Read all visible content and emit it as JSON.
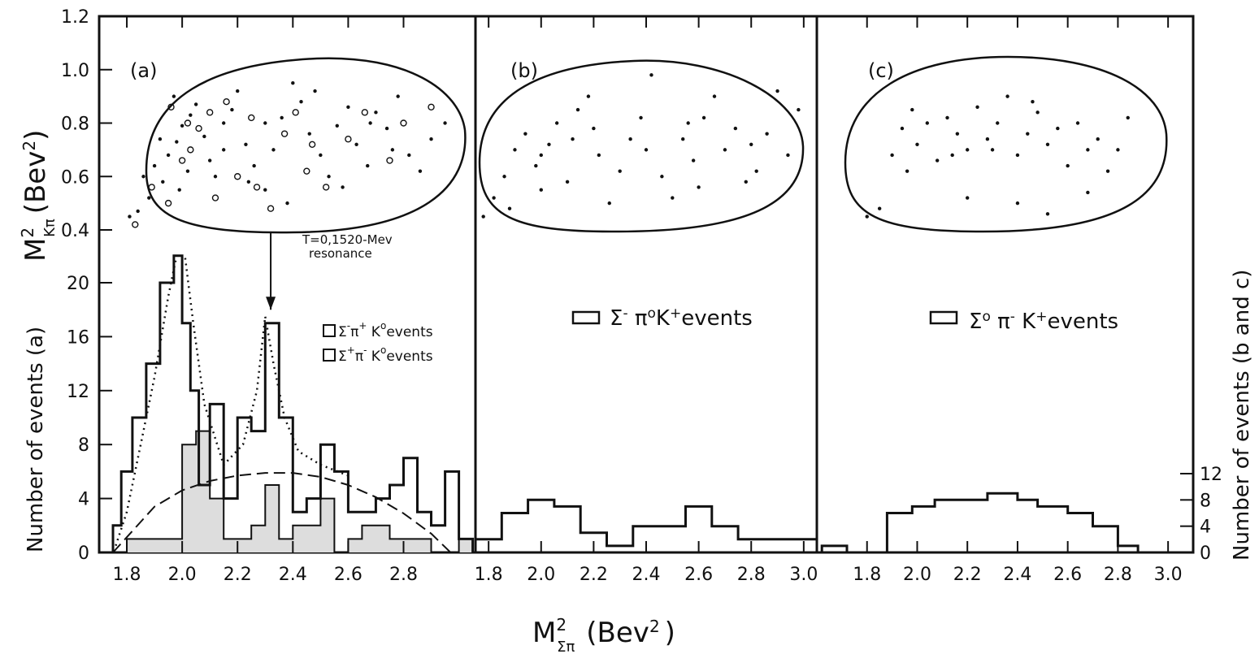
{
  "axis_titles": {
    "y_top": "M",
    "y_top_sub": "Kπ",
    "y_top_sup": "2",
    "y_top_unit": "(Bev",
    "y_top_unit_sup": "2",
    "y_top_close": ")",
    "y_left": "Number of events (a)",
    "y_right": "Number of events (b and c)",
    "x": "M",
    "x_sub": "Σπ",
    "x_sup": "2",
    "x_unit": "(Bev",
    "x_unit_sup": "2",
    "x_close": ")"
  },
  "ticks": {
    "mass_sq": [
      "1.2",
      "1.0",
      "0.8",
      "0.6",
      "0.4"
    ],
    "count_a": [
      "20",
      "16",
      "12",
      "8",
      "4",
      "0"
    ],
    "count_bc": [
      "12",
      "8",
      "4",
      "0"
    ],
    "x_a": [
      "1.8",
      "2.0",
      "2.2",
      "2.4",
      "2.6",
      "2.8"
    ],
    "x_b": [
      "1.8",
      "2.0",
      "2.2",
      "2.4",
      "2.6",
      "2.8",
      "3.0"
    ],
    "x_c": [
      "1.8",
      "2.0",
      "2.2",
      "2.4",
      "2.6",
      "2.8",
      "3.0"
    ]
  },
  "chart_data": [
    {
      "type": "histogram",
      "panel": "(a)",
      "x_range": [
        1.7,
        3.06
      ],
      "y_range_count": [
        0,
        24
      ],
      "y_range_mass_sq": [
        0.4,
        1.2
      ],
      "series": [
        {
          "name": "Σ⁻π⁺ K⁰events",
          "name_parts": [
            "Σ",
            "-",
            "π",
            "+",
            " K",
            "o",
            "events"
          ],
          "bin_edges": [
            1.75,
            1.78,
            1.82,
            1.87,
            1.92,
            1.97,
            2.0,
            2.03,
            2.06,
            2.1,
            2.15,
            2.2,
            2.25,
            2.3,
            2.35,
            2.4,
            2.45,
            2.5,
            2.55,
            2.6,
            2.65,
            2.7,
            2.75,
            2.8,
            2.85,
            2.9,
            2.95,
            3.0,
            3.05
          ],
          "counts": [
            2,
            6,
            10,
            14,
            20,
            22,
            17,
            12,
            5,
            11,
            4,
            10,
            9,
            17,
            10,
            3,
            4,
            8,
            6,
            3,
            3,
            4,
            5,
            7,
            3,
            2,
            6,
            1
          ]
        },
        {
          "name": "Σ⁺π⁻ K⁰events",
          "name_parts": [
            "Σ",
            "+",
            "π",
            "-",
            " K",
            "o",
            "events"
          ],
          "bin_edges": [
            1.75,
            1.8,
            1.9,
            1.95,
            2.0,
            2.05,
            2.1,
            2.15,
            2.2,
            2.25,
            2.3,
            2.35,
            2.4,
            2.45,
            2.5,
            2.55,
            2.6,
            2.65,
            2.7,
            2.75,
            2.8,
            2.85,
            2.9,
            2.95,
            3.0,
            3.05
          ],
          "counts": [
            0,
            1,
            1,
            1,
            8,
            9,
            4,
            1,
            1,
            2,
            5,
            1,
            2,
            2,
            4,
            0,
            1,
            2,
            2,
            1,
            1,
            1,
            0,
            0,
            1
          ]
        }
      ],
      "curves": {
        "phase_space": {
          "x": [
            1.75,
            1.9,
            2.0,
            2.1,
            2.2,
            2.3,
            2.4,
            2.5,
            2.6,
            2.7,
            2.8,
            2.9,
            2.97
          ],
          "y": [
            0,
            3.4,
            4.6,
            5.3,
            5.7,
            5.9,
            5.9,
            5.6,
            5.0,
            4.1,
            2.9,
            1.4,
            0
          ]
        },
        "resonance_fit": {
          "x": [
            1.76,
            1.8,
            1.85,
            1.9,
            1.95,
            1.98,
            2.01,
            2.04,
            2.08,
            2.15,
            2.22,
            2.27,
            2.3,
            2.33,
            2.37,
            2.42,
            2.5,
            2.6
          ],
          "y": [
            0.5,
            3,
            8,
            13,
            19,
            22,
            22,
            17,
            11,
            6.5,
            8,
            12,
            17.5,
            14,
            10,
            7.5,
            6.5,
            5.7
          ]
        }
      },
      "annotation": {
        "text_line1": "T=0,1520-Mev",
        "text_line2": "resonance",
        "arrow_x": 2.32,
        "arrow_from_y": 22.5,
        "arrow_to_y": 18
      }
    },
    {
      "type": "histogram",
      "panel": "(b)",
      "x_range": [
        1.75,
        3.05
      ],
      "y_range_count": [
        0,
        36
      ],
      "series": [
        {
          "name": "Σ⁻ π⁰K⁺events",
          "name_parts": [
            "Σ",
            "-",
            " π",
            "o",
            "K",
            "+",
            "events"
          ],
          "bin_edges": [
            1.75,
            1.85,
            1.95,
            2.05,
            2.15,
            2.25,
            2.35,
            2.45,
            2.55,
            2.65,
            2.75,
            2.9,
            3.05
          ],
          "counts": [
            2,
            6,
            8,
            7,
            3,
            1,
            4,
            4,
            7,
            4,
            2,
            2
          ]
        }
      ]
    },
    {
      "type": "histogram",
      "panel": "(c)",
      "x_range": [
        1.6,
        3.1
      ],
      "y_range_count": [
        0,
        36
      ],
      "series": [
        {
          "name": "Σ⁰ π⁻ K⁺events",
          "name_parts": [
            "Σ",
            "o",
            " π",
            "-",
            " K",
            "+",
            "events"
          ],
          "bin_edges": [
            1.62,
            1.72,
            1.8,
            1.88,
            1.98,
            2.07,
            2.2,
            2.28,
            2.4,
            2.48,
            2.6,
            2.7,
            2.8,
            2.88,
            3.0
          ],
          "counts": [
            1,
            0,
            0,
            6,
            7,
            8,
            8,
            9,
            8,
            7,
            6,
            4,
            1,
            0
          ]
        }
      ]
    }
  ],
  "scatter_points": {
    "a": {
      "dots": [
        [
          1.81,
          0.45
        ],
        [
          1.84,
          0.47
        ],
        [
          1.88,
          0.52
        ],
        [
          1.86,
          0.6
        ],
        [
          1.9,
          0.64
        ],
        [
          1.93,
          0.58
        ],
        [
          1.95,
          0.68
        ],
        [
          1.98,
          0.73
        ],
        [
          2.0,
          0.79
        ],
        [
          2.03,
          0.83
        ],
        [
          1.97,
          0.9
        ],
        [
          2.05,
          0.87
        ],
        [
          2.08,
          0.75
        ],
        [
          2.1,
          0.66
        ],
        [
          2.12,
          0.6
        ],
        [
          2.15,
          0.8
        ],
        [
          2.18,
          0.85
        ],
        [
          2.2,
          0.92
        ],
        [
          2.23,
          0.72
        ],
        [
          2.26,
          0.64
        ],
        [
          2.3,
          0.55
        ],
        [
          2.33,
          0.7
        ],
        [
          2.36,
          0.82
        ],
        [
          2.4,
          0.95
        ],
        [
          2.43,
          0.88
        ],
        [
          2.46,
          0.76
        ],
        [
          2.5,
          0.68
        ],
        [
          2.53,
          0.6
        ],
        [
          2.56,
          0.79
        ],
        [
          2.6,
          0.86
        ],
        [
          2.63,
          0.72
        ],
        [
          2.67,
          0.64
        ],
        [
          2.7,
          0.84
        ],
        [
          2.74,
          0.78
        ],
        [
          2.78,
          0.9
        ],
        [
          2.82,
          0.68
        ],
        [
          2.86,
          0.62
        ],
        [
          2.9,
          0.74
        ],
        [
          2.95,
          0.8
        ],
        [
          1.92,
          0.74
        ],
        [
          2.02,
          0.62
        ],
        [
          2.24,
          0.58
        ],
        [
          2.38,
          0.5
        ],
        [
          2.48,
          0.92
        ],
        [
          2.58,
          0.56
        ],
        [
          2.68,
          0.8
        ],
        [
          2.3,
          0.8
        ],
        [
          2.15,
          0.7
        ],
        [
          1.99,
          0.55
        ],
        [
          2.76,
          0.7
        ]
      ],
      "circles": [
        [
          1.83,
          0.42
        ],
        [
          1.89,
          0.56
        ],
        [
          1.95,
          0.5
        ],
        [
          2.0,
          0.66
        ],
        [
          2.02,
          0.8
        ],
        [
          2.06,
          0.78
        ],
        [
          2.1,
          0.84
        ],
        [
          2.16,
          0.88
        ],
        [
          2.2,
          0.6
        ],
        [
          2.27,
          0.56
        ],
        [
          2.32,
          0.48
        ],
        [
          2.37,
          0.76
        ],
        [
          2.41,
          0.84
        ],
        [
          2.47,
          0.72
        ],
        [
          2.52,
          0.56
        ],
        [
          2.6,
          0.74
        ],
        [
          2.66,
          0.84
        ],
        [
          2.75,
          0.66
        ],
        [
          2.9,
          0.86
        ],
        [
          1.96,
          0.86
        ],
        [
          2.12,
          0.52
        ],
        [
          2.45,
          0.62
        ],
        [
          2.8,
          0.8
        ],
        [
          2.25,
          0.82
        ],
        [
          2.03,
          0.7
        ]
      ]
    },
    "b": [
      [
        1.78,
        0.45
      ],
      [
        1.82,
        0.52
      ],
      [
        1.86,
        0.6
      ],
      [
        1.9,
        0.7
      ],
      [
        1.94,
        0.76
      ],
      [
        1.98,
        0.64
      ],
      [
        2.0,
        0.55
      ],
      [
        2.03,
        0.72
      ],
      [
        2.06,
        0.8
      ],
      [
        2.1,
        0.58
      ],
      [
        2.14,
        0.85
      ],
      [
        2.18,
        0.9
      ],
      [
        2.22,
        0.68
      ],
      [
        2.26,
        0.5
      ],
      [
        2.3,
        0.62
      ],
      [
        2.34,
        0.74
      ],
      [
        2.38,
        0.82
      ],
      [
        2.42,
        0.98
      ],
      [
        2.46,
        0.6
      ],
      [
        2.5,
        0.52
      ],
      [
        2.54,
        0.74
      ],
      [
        2.58,
        0.66
      ],
      [
        2.62,
        0.82
      ],
      [
        2.66,
        0.9
      ],
      [
        2.7,
        0.7
      ],
      [
        2.74,
        0.78
      ],
      [
        2.78,
        0.58
      ],
      [
        2.82,
        0.62
      ],
      [
        2.86,
        0.76
      ],
      [
        2.9,
        0.92
      ],
      [
        2.94,
        0.68
      ],
      [
        2.98,
        0.85
      ],
      [
        2.0,
        0.68
      ],
      [
        2.2,
        0.78
      ],
      [
        2.4,
        0.7
      ],
      [
        2.6,
        0.56
      ],
      [
        2.8,
        0.72
      ],
      [
        1.88,
        0.48
      ],
      [
        2.12,
        0.74
      ],
      [
        2.56,
        0.8
      ]
    ],
    "c": [
      [
        1.8,
        0.45
      ],
      [
        1.85,
        0.48
      ],
      [
        1.9,
        0.68
      ],
      [
        1.94,
        0.78
      ],
      [
        1.98,
        0.85
      ],
      [
        2.0,
        0.72
      ],
      [
        2.04,
        0.8
      ],
      [
        2.08,
        0.66
      ],
      [
        2.12,
        0.82
      ],
      [
        2.16,
        0.76
      ],
      [
        2.2,
        0.7
      ],
      [
        2.24,
        0.86
      ],
      [
        2.28,
        0.74
      ],
      [
        2.32,
        0.8
      ],
      [
        2.36,
        0.9
      ],
      [
        2.4,
        0.68
      ],
      [
        2.44,
        0.76
      ],
      [
        2.48,
        0.84
      ],
      [
        2.52,
        0.72
      ],
      [
        2.56,
        0.78
      ],
      [
        2.6,
        0.64
      ],
      [
        2.64,
        0.8
      ],
      [
        2.68,
        0.7
      ],
      [
        2.72,
        0.74
      ],
      [
        2.76,
        0.62
      ],
      [
        2.8,
        0.7
      ],
      [
        2.84,
        0.82
      ],
      [
        2.2,
        0.52
      ],
      [
        2.4,
        0.5
      ],
      [
        2.52,
        0.46
      ],
      [
        2.68,
        0.54
      ],
      [
        1.96,
        0.62
      ],
      [
        2.3,
        0.7
      ],
      [
        2.46,
        0.88
      ],
      [
        2.14,
        0.68
      ]
    ]
  }
}
